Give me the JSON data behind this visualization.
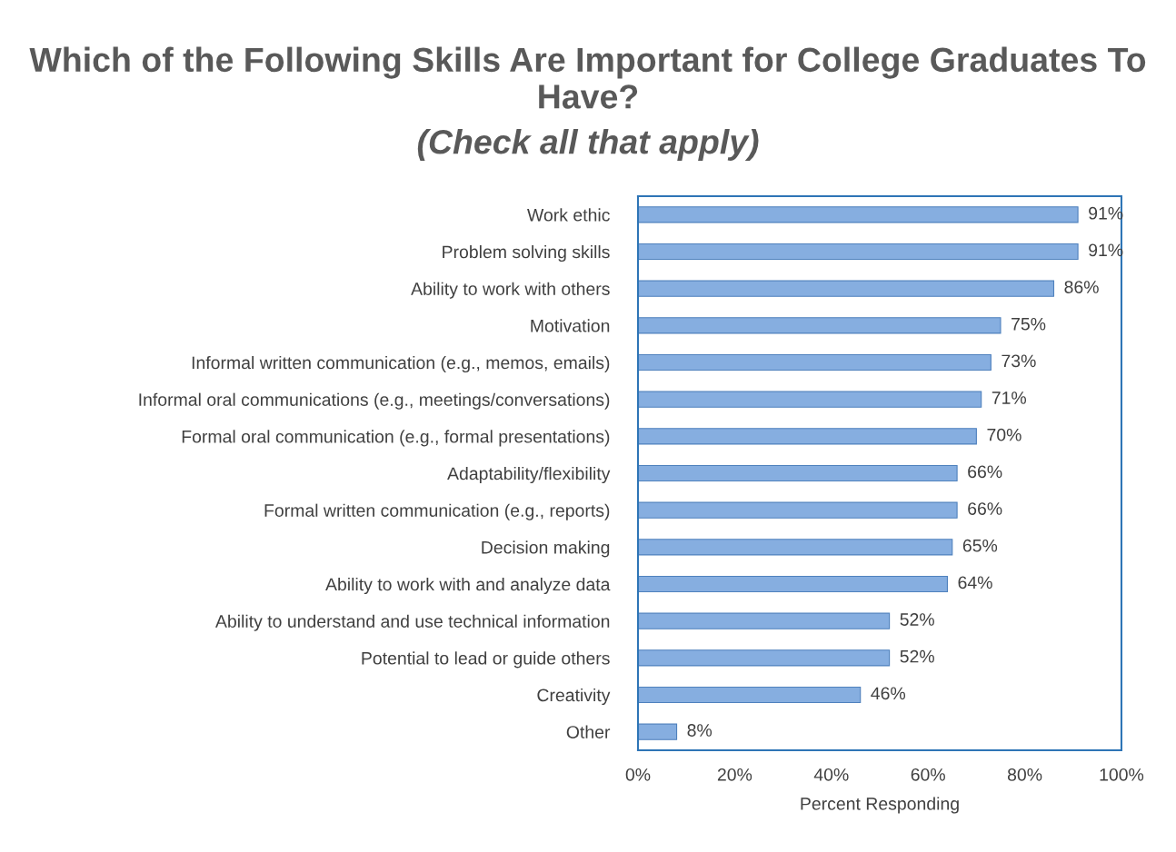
{
  "chart_data": {
    "type": "bar",
    "orientation": "horizontal",
    "title": "Which of the Following Skills Are Important for College Graduates To Have?",
    "subtitle": "(Check all that apply)",
    "xlabel": "Percent Responding",
    "categories": [
      "Work ethic",
      "Problem solving skills",
      "Ability to work with others",
      "Motivation",
      "Informal written communication (e.g., memos, emails)",
      "Informal oral communications (e.g., meetings/conversations)",
      "Formal oral communication (e.g., formal presentations)",
      "Adaptability/flexibility",
      "Formal written communication (e.g., reports)",
      "Decision making",
      "Ability to work with and analyze data",
      "Ability to understand and use technical information",
      "Potential to lead or guide others",
      "Creativity",
      "Other"
    ],
    "values": [
      91,
      91,
      86,
      75,
      73,
      71,
      70,
      66,
      66,
      65,
      64,
      52,
      52,
      46,
      8
    ],
    "value_labels": [
      "91%",
      "91%",
      "86%",
      "75%",
      "73%",
      "71%",
      "70%",
      "66%",
      "66%",
      "65%",
      "64%",
      "52%",
      "52%",
      "46%",
      "8%"
    ],
    "color": "#86aee0",
    "xlim": [
      0,
      100
    ],
    "xticks": [
      {
        "value": 0,
        "label": "0%"
      },
      {
        "value": 20,
        "label": "20%"
      },
      {
        "value": 40,
        "label": "40%"
      },
      {
        "value": 60,
        "label": "60%"
      },
      {
        "value": 80,
        "label": "80%"
      },
      {
        "value": 100,
        "label": "100%"
      }
    ],
    "grid": false,
    "legend": false
  }
}
